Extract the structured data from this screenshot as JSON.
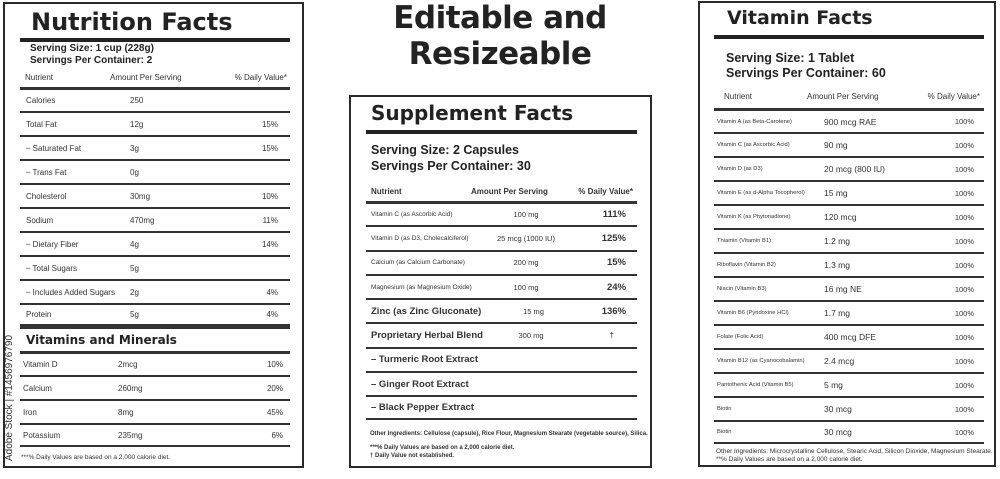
{
  "headline": "Editable and Resizeable",
  "watermark": "Adobe Stock | #1456976790",
  "nutrition": {
    "title": "Nutrition Facts",
    "serving_size": "Serving Size: 1 cup (228g)",
    "servings": "Servings Per Container: 2",
    "headers": [
      "Nutrient",
      "Amount Per Serving",
      "% Daily Value*"
    ],
    "rows": [
      [
        "Calories",
        "250",
        ""
      ],
      [
        "Total Fat",
        "12g",
        "15%"
      ],
      [
        "– Saturated Fat",
        "3g",
        "15%"
      ],
      [
        "– Trans Fat",
        "0g",
        ""
      ],
      [
        "Cholesterol",
        "30mg",
        "10%"
      ],
      [
        "Sodium",
        "470mg",
        "11%"
      ],
      [
        "– Dietary Fiber",
        "4g",
        "14%"
      ],
      [
        "– Total Sugars",
        "5g",
        ""
      ],
      [
        "– Includes Added Sugars",
        "2g",
        "4%"
      ],
      [
        "Protein",
        "5g",
        "4%"
      ]
    ],
    "section": "Vitamins and Minerals",
    "minerals": [
      [
        "Vitamin D",
        "2mcg",
        "10%"
      ],
      [
        "Calcium",
        "260mg",
        "20%"
      ],
      [
        "Iron",
        "8mg",
        "45%"
      ],
      [
        "Potassium",
        "235mg",
        "6%"
      ]
    ],
    "footnote": "***% Daily Values are based on a 2,000 calorie diet."
  },
  "supplement": {
    "title": "Supplement Facts",
    "serving_size": "Serving Size: 2 Capsules",
    "servings": "Servings Per Container: 30",
    "headers": [
      "Nutrient",
      "Amount Per Serving",
      "% Daily Value*"
    ],
    "rows": [
      [
        "Vitamin C (as Ascorbic Acid)",
        "100 mg",
        "111%"
      ],
      [
        "Vitamin D (as D3, Cholecalciferol)",
        "25 mcg (1000 IU)",
        "125%"
      ],
      [
        "Calcium (as Calcium Carbonate)",
        "200 mg",
        "15%"
      ],
      [
        "Magnesium (as Magnesium Oxide)",
        "100 mg",
        "24%"
      ],
      [
        "Zinc (as Zinc Gluconate)",
        "15 mg",
        "136%"
      ],
      [
        "Proprietary Herbal Blend",
        "300 mg",
        "†"
      ],
      [
        "– Turmeric Root Extract",
        "",
        ""
      ],
      [
        "– Ginger Root Extract",
        "",
        ""
      ],
      [
        "– Black Pepper Extract",
        "",
        ""
      ]
    ],
    "other": "Other Ingredients: Cellulose (capsule), Rice Flour, Magnesium Stearate (vegetable source), Silica.",
    "note1": "***% Daily Values are based on a 2,000 calorie diet.",
    "note2": "† Daily Value not established."
  },
  "vitamin": {
    "title": "Vitamin Facts",
    "serving_size": "Serving Size: 1 Tablet",
    "servings": "Servings Per Container: 60",
    "headers": [
      "Nutrient",
      "Amount Per Serving",
      "% Daily Value*"
    ],
    "rows": [
      [
        "Vitamin A (as Beta-Carotene)",
        "900 mcg RAE",
        "100%"
      ],
      [
        "Vitamin C (as Ascorbic Acid)",
        "90 mg",
        "100%"
      ],
      [
        "Vitamin D (as D3)",
        "20 mcg (800 IU)",
        "100%"
      ],
      [
        "Vitamin E (as d-Alpha Tocopherol)",
        "15 mg",
        "100%"
      ],
      [
        "Vitamin K (as Phytonadione)",
        "120 mcg",
        "100%"
      ],
      [
        "Thiamin (Vitamin B1)",
        "1.2 mg",
        "100%"
      ],
      [
        "Riboflavin (Vitamin B2)",
        "1.3 mg",
        "100%"
      ],
      [
        "Niacin (Vitamin B3)",
        "16 mg NE",
        "100%"
      ],
      [
        "Vitamin B6 (Pyridoxine HCl)",
        "1.7 mg",
        "100%"
      ],
      [
        "Folate (Folic Acid)",
        "400 mcg DFE",
        "100%"
      ],
      [
        "Vitamin B12 (as Cyanocobalamin)",
        "2.4 mcg",
        "100%"
      ],
      [
        "Pantothenic Acid (Vitamin B5)",
        "5 mg",
        "100%"
      ],
      [
        "Biotin",
        "30 mcg",
        "100%"
      ],
      [
        "Biotin",
        "30 mcg",
        "100%"
      ]
    ],
    "other": "Other Ingredients: Microcrystalline Cellulose, Stearic Acid, Silicon Dioxide, Magnesium Stearate.",
    "note": "**% Daily Values are based on a 2,000 calorie diet."
  }
}
